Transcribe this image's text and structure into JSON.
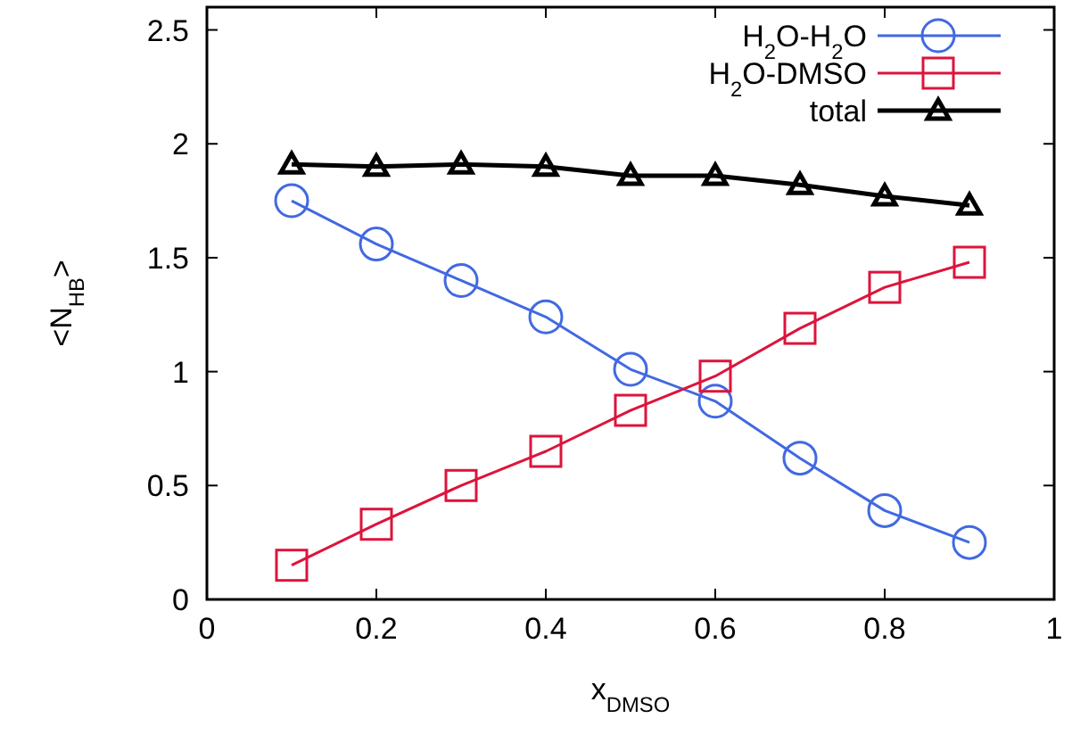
{
  "chart_data": {
    "type": "line",
    "xlabel": "x$_{DMSO}$",
    "ylabel": "<N$_{HB}$>",
    "x": [
      0.1,
      0.2,
      0.3,
      0.4,
      0.5,
      0.6,
      0.7,
      0.8,
      0.9
    ],
    "xlim": [
      0,
      1
    ],
    "xticks": [
      0,
      0.2,
      0.4,
      0.6,
      0.8,
      1
    ],
    "ylim": [
      0,
      2.6
    ],
    "yticks": [
      0,
      0.5,
      1,
      1.5,
      2,
      2.5
    ],
    "grid": false,
    "legend": "top right",
    "series": [
      {
        "name": "H$_{2}$O-H$_{2}$O",
        "color": "#4169e1",
        "marker": "circle",
        "values": [
          1.75,
          1.56,
          1.4,
          1.24,
          1.01,
          0.87,
          0.62,
          0.39,
          0.25
        ]
      },
      {
        "name": "H$_{2}$O-DMSO",
        "color": "#dc143c",
        "marker": "square",
        "values": [
          0.15,
          0.33,
          0.5,
          0.65,
          0.83,
          0.98,
          1.19,
          1.37,
          1.48
        ]
      },
      {
        "name": "total",
        "color": "#000000",
        "marker": "triangle",
        "values": [
          1.91,
          1.9,
          1.91,
          1.9,
          1.86,
          1.86,
          1.82,
          1.77,
          1.73
        ]
      }
    ]
  }
}
